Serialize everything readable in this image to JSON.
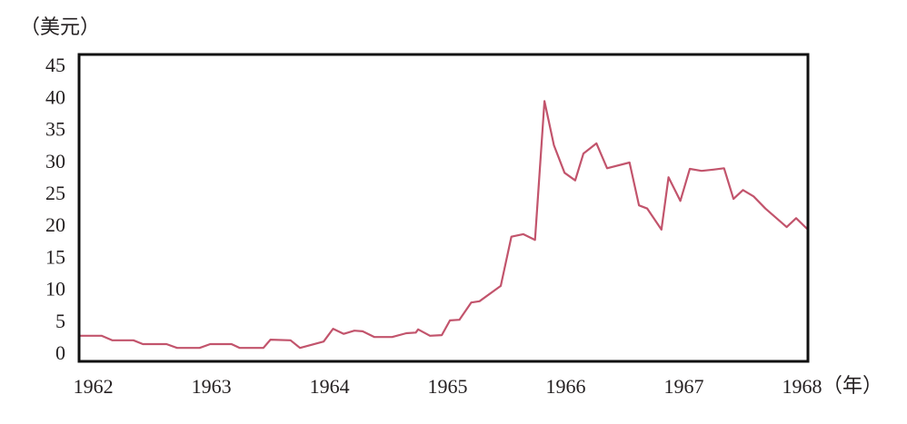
{
  "chart_data": {
    "type": "line",
    "y_label": "（美元）",
    "x_label": "（年）",
    "xlim": [
      1961.88,
      1968.05
    ],
    "xticks": [
      1962,
      1963,
      1964,
      1965,
      1966,
      1967,
      1968
    ],
    "ylim": [
      -1,
      47
    ],
    "yticks": [
      0,
      5,
      10,
      15,
      20,
      25,
      30,
      35,
      40,
      45
    ],
    "grid": false,
    "series": [
      {
        "color": "#c2546c",
        "x": [
          1961.88,
          1962.07,
          1962.16,
          1962.34,
          1962.42,
          1962.62,
          1962.71,
          1962.9,
          1962.99,
          1963.17,
          1963.24,
          1963.44,
          1963.5,
          1963.67,
          1963.75,
          1963.95,
          1964.03,
          1964.12,
          1964.21,
          1964.28,
          1964.38,
          1964.53,
          1964.65,
          1964.73,
          1964.75,
          1964.85,
          1964.95,
          1965.02,
          1965.1,
          1965.2,
          1965.27,
          1965.45,
          1965.54,
          1965.64,
          1965.74,
          1965.82,
          1965.9,
          1965.99,
          1966.08,
          1966.15,
          1966.26,
          1966.35,
          1966.54,
          1966.62,
          1966.69,
          1966.81,
          1966.87,
          1966.97,
          1967.05,
          1967.15,
          1967.25,
          1967.34,
          1967.42,
          1967.5,
          1967.59,
          1967.69,
          1967.87,
          1967.95,
          1968.05
        ],
        "values": [
          3.0,
          3.0,
          2.3,
          2.3,
          1.7,
          1.7,
          1.1,
          1.1,
          1.7,
          1.7,
          1.1,
          1.1,
          2.4,
          2.3,
          1.1,
          2.1,
          4.1,
          3.3,
          3.8,
          3.7,
          2.8,
          2.8,
          3.4,
          3.5,
          4.0,
          3.0,
          3.1,
          5.4,
          5.5,
          8.2,
          8.4,
          10.8,
          18.5,
          18.9,
          18.0,
          39.7,
          32.8,
          28.5,
          27.3,
          31.5,
          33.1,
          29.2,
          30.1,
          23.4,
          22.9,
          19.6,
          27.8,
          24.1,
          29.1,
          28.8,
          29.0,
          29.2,
          24.4,
          25.8,
          24.8,
          22.9,
          20.0,
          21.4,
          19.6
        ]
      }
    ]
  }
}
